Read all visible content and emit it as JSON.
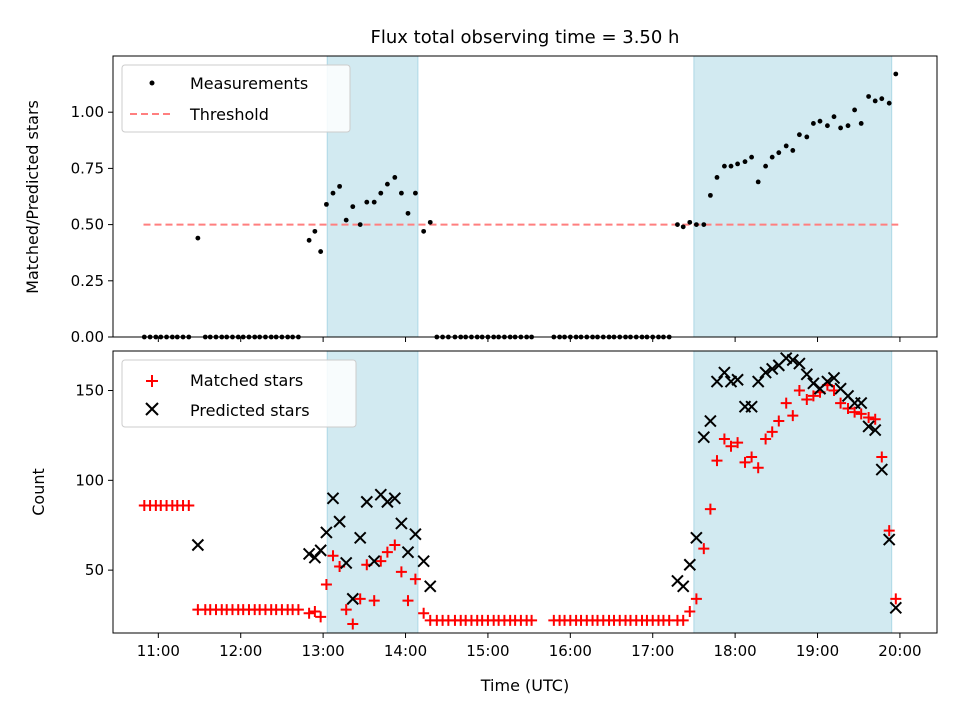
{
  "chart_data": [
    {
      "type": "scatter",
      "title": "Flux total observing time = 3.50 h",
      "xlabel": "",
      "ylabel": "Matched/Predicted stars",
      "xlim": [
        10.45,
        20.45
      ],
      "ylim": [
        0,
        1.25
      ],
      "xticks": [
        11,
        12,
        13,
        14,
        15,
        16,
        17,
        18,
        19,
        20
      ],
      "yticks": [
        0.0,
        0.25,
        0.5,
        0.75,
        1.0
      ],
      "ytick_labels": [
        "0.00",
        "0.25",
        "0.50",
        "0.75",
        "1.00"
      ],
      "legend_position": "top-left",
      "shaded_intervals": [
        [
          13.05,
          14.15
        ],
        [
          17.5,
          19.9
        ]
      ],
      "shade_color": "#add8e6",
      "threshold": {
        "name": "Threshold",
        "y": 0.5,
        "x_range": [
          10.82,
          19.98
        ],
        "color": "#ff7f7f"
      },
      "series": [
        {
          "name": "Measurements",
          "marker": "dot",
          "color": "#000000",
          "x": [
            10.83,
            10.9,
            10.97,
            11.03,
            11.1,
            11.17,
            11.23,
            11.3,
            11.37,
            11.48,
            11.57,
            11.63,
            11.7,
            11.77,
            11.83,
            11.9,
            11.97,
            12.03,
            12.1,
            12.17,
            12.23,
            12.3,
            12.37,
            12.43,
            12.5,
            12.57,
            12.63,
            12.7,
            12.83,
            12.9,
            12.97,
            13.04,
            13.12,
            13.2,
            13.28,
            13.36,
            13.45,
            13.53,
            13.62,
            13.7,
            13.78,
            13.87,
            13.95,
            14.03,
            14.12,
            14.22,
            14.3,
            14.38,
            14.45,
            14.52,
            14.6,
            14.67,
            14.73,
            14.8,
            14.87,
            14.93,
            15.0,
            15.07,
            15.13,
            15.2,
            15.27,
            15.33,
            15.4,
            15.47,
            15.53,
            15.8,
            15.87,
            15.93,
            16.0,
            16.07,
            16.13,
            16.2,
            16.27,
            16.33,
            16.4,
            16.47,
            16.53,
            16.6,
            16.67,
            16.73,
            16.8,
            16.87,
            16.93,
            17.0,
            17.07,
            17.13,
            17.2,
            17.3,
            17.37,
            17.45,
            17.53,
            17.62,
            17.7,
            17.78,
            17.87,
            17.95,
            18.03,
            18.12,
            18.2,
            18.28,
            18.37,
            18.45,
            18.53,
            18.62,
            18.7,
            18.78,
            18.87,
            18.95,
            19.03,
            19.12,
            19.2,
            19.28,
            19.37,
            19.45,
            19.53,
            19.62,
            19.7,
            19.78,
            19.87,
            19.95
          ],
          "y": [
            0,
            0,
            0,
            0,
            0,
            0,
            0,
            0,
            0,
            0.44,
            0,
            0,
            0,
            0,
            0,
            0,
            0,
            0,
            0,
            0,
            0,
            0,
            0,
            0,
            0,
            0,
            0,
            0,
            0.43,
            0.47,
            0.38,
            0.59,
            0.64,
            0.67,
            0.52,
            0.58,
            0.5,
            0.6,
            0.6,
            0.64,
            0.68,
            0.71,
            0.64,
            0.55,
            0.64,
            0.47,
            0.51,
            0,
            0,
            0,
            0,
            0,
            0,
            0,
            0,
            0,
            0,
            0,
            0,
            0,
            0,
            0,
            0,
            0,
            0,
            0,
            0,
            0,
            0,
            0,
            0,
            0,
            0,
            0,
            0,
            0,
            0,
            0,
            0,
            0,
            0,
            0,
            0,
            0,
            0,
            0,
            0,
            0.5,
            0.49,
            0.51,
            0.5,
            0.5,
            0.63,
            0.71,
            0.76,
            0.76,
            0.77,
            0.78,
            0.8,
            0.69,
            0.76,
            0.8,
            0.82,
            0.85,
            0.83,
            0.9,
            0.89,
            0.95,
            0.96,
            0.94,
            0.98,
            0.93,
            0.94,
            1.01,
            0.95,
            1.07,
            1.05,
            1.06,
            1.04,
            1.17
          ]
        }
      ]
    },
    {
      "type": "scatter",
      "title": "",
      "xlabel": "Time (UTC)",
      "ylabel": "Count",
      "xlim": [
        10.45,
        20.45
      ],
      "ylim": [
        15,
        172
      ],
      "xticks": [
        11,
        12,
        13,
        14,
        15,
        16,
        17,
        18,
        19,
        20
      ],
      "xtick_labels": [
        "11:00",
        "12:00",
        "13:00",
        "14:00",
        "15:00",
        "16:00",
        "17:00",
        "18:00",
        "19:00",
        "20:00"
      ],
      "yticks": [
        50,
        100,
        150
      ],
      "legend_position": "top-left",
      "shaded_intervals": [
        [
          13.05,
          14.15
        ],
        [
          17.5,
          19.9
        ]
      ],
      "shade_color": "#add8e6",
      "series": [
        {
          "name": "Matched stars",
          "marker": "plus",
          "color": "#ff0000",
          "x": [
            10.83,
            10.9,
            10.97,
            11.03,
            11.1,
            11.17,
            11.23,
            11.3,
            11.37,
            11.48,
            11.57,
            11.63,
            11.7,
            11.77,
            11.83,
            11.9,
            11.97,
            12.03,
            12.1,
            12.17,
            12.23,
            12.3,
            12.37,
            12.43,
            12.5,
            12.57,
            12.63,
            12.7,
            12.83,
            12.9,
            12.97,
            13.04,
            13.12,
            13.2,
            13.28,
            13.36,
            13.45,
            13.53,
            13.62,
            13.7,
            13.78,
            13.87,
            13.95,
            14.03,
            14.12,
            14.22,
            14.3,
            14.38,
            14.45,
            14.52,
            14.6,
            14.67,
            14.73,
            14.8,
            14.87,
            14.93,
            15.0,
            15.07,
            15.13,
            15.2,
            15.27,
            15.33,
            15.4,
            15.47,
            15.53,
            15.8,
            15.87,
            15.93,
            16.0,
            16.07,
            16.13,
            16.2,
            16.27,
            16.33,
            16.4,
            16.47,
            16.53,
            16.6,
            16.67,
            16.73,
            16.8,
            16.87,
            16.93,
            17.0,
            17.07,
            17.13,
            17.2,
            17.3,
            17.37,
            17.45,
            17.53,
            17.62,
            17.7,
            17.78,
            17.87,
            17.95,
            18.03,
            18.12,
            18.2,
            18.28,
            18.37,
            18.45,
            18.53,
            18.62,
            18.7,
            18.78,
            18.87,
            18.95,
            19.03,
            19.12,
            19.2,
            19.28,
            19.37,
            19.45,
            19.53,
            19.62,
            19.7,
            19.78,
            19.87,
            19.95
          ],
          "y": [
            86,
            86,
            86,
            86,
            86,
            86,
            86,
            86,
            86,
            28,
            28,
            28,
            28,
            28,
            28,
            28,
            28,
            28,
            28,
            28,
            28,
            28,
            28,
            28,
            28,
            28,
            28,
            28,
            26,
            27,
            24,
            42,
            58,
            52,
            28,
            20,
            34,
            53,
            33,
            55,
            60,
            64,
            49,
            33,
            45,
            26,
            22,
            22,
            22,
            22,
            22,
            22,
            22,
            22,
            22,
            22,
            22,
            22,
            22,
            22,
            22,
            22,
            22,
            22,
            22,
            22,
            22,
            22,
            22,
            22,
            22,
            22,
            22,
            22,
            22,
            22,
            22,
            22,
            22,
            22,
            22,
            22,
            22,
            22,
            22,
            22,
            22,
            22,
            22,
            27,
            34,
            62,
            84,
            111,
            123,
            119,
            121,
            110,
            113,
            107,
            123,
            127,
            133,
            143,
            136,
            150,
            145,
            147,
            149,
            153,
            150,
            143,
            140,
            138,
            137,
            135,
            134,
            113,
            72,
            34
          ]
        },
        {
          "name": "Predicted stars",
          "marker": "x",
          "color": "#000000",
          "x": [
            11.48,
            12.83,
            12.9,
            12.97,
            13.04,
            13.12,
            13.2,
            13.28,
            13.36,
            13.45,
            13.53,
            13.62,
            13.7,
            13.78,
            13.87,
            13.95,
            14.03,
            14.12,
            14.22,
            14.3,
            17.3,
            17.37,
            17.45,
            17.53,
            17.62,
            17.7,
            17.78,
            17.87,
            17.95,
            18.03,
            18.12,
            18.2,
            18.28,
            18.37,
            18.45,
            18.53,
            18.62,
            18.7,
            18.78,
            18.87,
            18.95,
            19.03,
            19.12,
            19.2,
            19.28,
            19.37,
            19.45,
            19.53,
            19.62,
            19.7,
            19.78,
            19.87,
            19.95
          ],
          "y": [
            64,
            59,
            57,
            61,
            71,
            90,
            77,
            54,
            34,
            68,
            88,
            55,
            92,
            88,
            90,
            76,
            60,
            70,
            55,
            41,
            44,
            41,
            53,
            68,
            124,
            133,
            155,
            160,
            155,
            156,
            141,
            141,
            155,
            160,
            162,
            164,
            168,
            167,
            165,
            159,
            154,
            151,
            155,
            157,
            151,
            147,
            143,
            143,
            130,
            128,
            106,
            67,
            29
          ]
        }
      ]
    }
  ]
}
